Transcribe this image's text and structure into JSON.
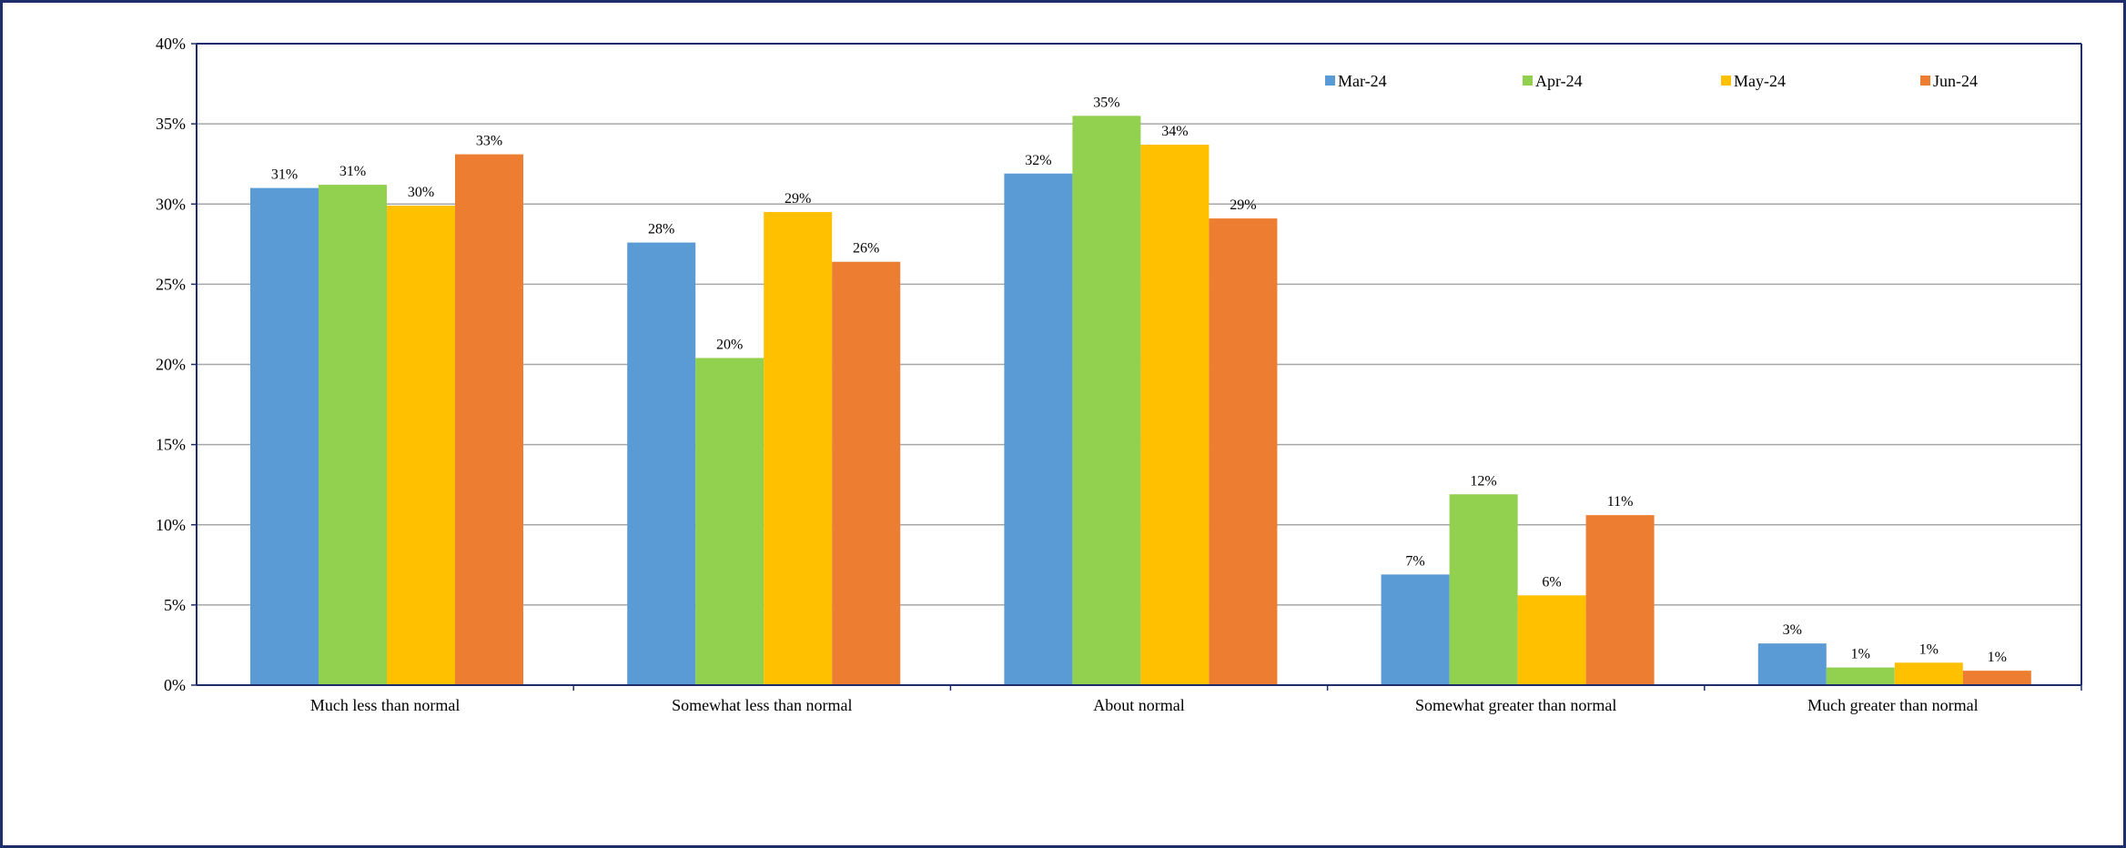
{
  "chart_data": {
    "type": "bar",
    "title": "",
    "xlabel": "",
    "ylabel": "",
    "ylim": [
      0,
      40
    ],
    "yticks": [
      "0%",
      "5%",
      "10%",
      "15%",
      "20%",
      "25%",
      "30%",
      "35%",
      "40%"
    ],
    "grid": true,
    "legend_position": "top-right",
    "categories": [
      "Much less than normal",
      "Somewhat less than normal",
      "About normal",
      "Somewhat greater than normal",
      "Much greater than normal"
    ],
    "series": [
      {
        "name": "Mar-24",
        "color": "#5b9bd5",
        "values": [
          31,
          27.6,
          31.9,
          6.9,
          2.6
        ],
        "labels": [
          "31%",
          "28%",
          "32%",
          "7%",
          "3%"
        ]
      },
      {
        "name": "Apr-24",
        "color": "#92d050",
        "values": [
          31.2,
          20.4,
          35.5,
          11.9,
          1.1
        ],
        "labels": [
          "31%",
          "20%",
          "35%",
          "12%",
          "1%"
        ]
      },
      {
        "name": "May-24",
        "color": "#ffc000",
        "values": [
          29.9,
          29.5,
          33.7,
          5.6,
          1.4
        ],
        "labels": [
          "30%",
          "29%",
          "34%",
          "6%",
          "1%"
        ]
      },
      {
        "name": "Jun-24",
        "color": "#ed7d31",
        "values": [
          33.1,
          26.4,
          29.1,
          10.6,
          0.9
        ],
        "labels": [
          "33%",
          "26%",
          "29%",
          "11%",
          "1%"
        ]
      }
    ]
  }
}
